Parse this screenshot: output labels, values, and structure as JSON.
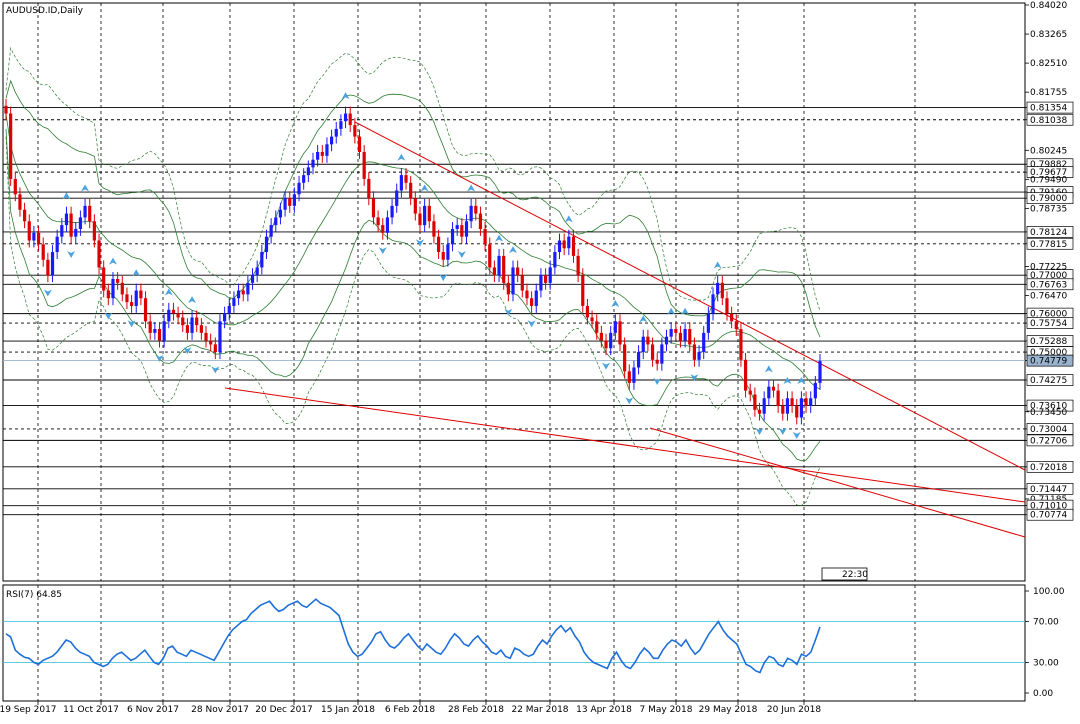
{
  "chart_data": {
    "type": "candlestick",
    "title": "AUDUSD.ID,Daily",
    "symbol": "AUDUSD.ID",
    "timeframe": "Daily",
    "ylim": [
      0.69,
      0.8402
    ],
    "y_ticks": [
      "0.84020",
      "0.83265",
      "0.82510",
      "0.81755",
      "0.81354",
      "0.81038",
      "0.80245",
      "0.79882",
      "0.79677",
      "0.79490",
      "0.79160",
      "0.79000",
      "0.78735",
      "0.78124",
      "0.77815",
      "0.77225",
      "0.77000",
      "0.76763",
      "0.76470",
      "0.76000",
      "0.75754",
      "0.75288",
      "0.75000",
      "0.74779",
      "0.74275",
      "0.73610",
      "0.73450",
      "0.73004",
      "0.72706",
      "0.72018",
      "0.71447",
      "0.71185",
      "0.71010",
      "0.70774"
    ],
    "x_ticks": [
      "19 Sep 2017",
      "11 Oct 2017",
      "6 Nov 2017",
      "28 Nov 2017",
      "20 Dec 2017",
      "15 Jan 2018",
      "6 Feb 2018",
      "28 Feb 2018",
      "22 Mar 2018",
      "13 Apr 2018",
      "7 May 2018",
      "29 May 2018",
      "20 Jun 2018"
    ],
    "current_price": "0.74779",
    "horizontal_levels": [
      "0.81354",
      "0.81038",
      "0.79882",
      "0.79677",
      "0.79160",
      "0.79000",
      "0.78124",
      "0.77815",
      "0.77000",
      "0.76763",
      "0.76000",
      "0.75754",
      "0.75288",
      "0.75000",
      "0.74275",
      "0.73610",
      "0.73004",
      "0.72706",
      "0.72018",
      "0.71447",
      "0.71010",
      "0.70774"
    ],
    "dashed_levels": [
      "0.81038",
      "0.79677",
      "0.77815",
      "0.75754",
      "0.75000",
      "0.73004"
    ],
    "candle_colors": {
      "up": "#1a1aff",
      "down": "#dd0000"
    },
    "close_series": [
      0.812,
      0.795,
      0.791,
      0.787,
      0.784,
      0.779,
      0.781,
      0.778,
      0.774,
      0.77,
      0.776,
      0.78,
      0.783,
      0.786,
      0.78,
      0.782,
      0.785,
      0.788,
      0.784,
      0.779,
      0.772,
      0.766,
      0.764,
      0.769,
      0.768,
      0.765,
      0.763,
      0.762,
      0.766,
      0.764,
      0.758,
      0.755,
      0.756,
      0.753,
      0.758,
      0.761,
      0.76,
      0.759,
      0.757,
      0.755,
      0.759,
      0.757,
      0.755,
      0.753,
      0.752,
      0.75,
      0.758,
      0.76,
      0.762,
      0.764,
      0.766,
      0.765,
      0.768,
      0.77,
      0.772,
      0.776,
      0.78,
      0.783,
      0.785,
      0.787,
      0.79,
      0.788,
      0.791,
      0.794,
      0.796,
      0.798,
      0.8,
      0.802,
      0.801,
      0.804,
      0.806,
      0.808,
      0.81,
      0.812,
      0.809,
      0.806,
      0.802,
      0.795,
      0.79,
      0.785,
      0.783,
      0.781,
      0.785,
      0.788,
      0.792,
      0.796,
      0.794,
      0.79,
      0.786,
      0.783,
      0.788,
      0.784,
      0.78,
      0.776,
      0.774,
      0.778,
      0.782,
      0.783,
      0.78,
      0.784,
      0.788,
      0.786,
      0.782,
      0.778,
      0.772,
      0.77,
      0.775,
      0.768,
      0.765,
      0.772,
      0.77,
      0.766,
      0.764,
      0.762,
      0.766,
      0.77,
      0.768,
      0.772,
      0.776,
      0.779,
      0.777,
      0.78,
      0.775,
      0.77,
      0.762,
      0.759,
      0.758,
      0.755,
      0.753,
      0.751,
      0.755,
      0.758,
      0.752,
      0.745,
      0.742,
      0.746,
      0.75,
      0.754,
      0.752,
      0.748,
      0.747,
      0.752,
      0.754,
      0.756,
      0.755,
      0.753,
      0.756,
      0.752,
      0.748,
      0.75,
      0.755,
      0.76,
      0.765,
      0.768,
      0.764,
      0.76,
      0.758,
      0.756,
      0.748,
      0.74,
      0.739,
      0.735,
      0.734,
      0.738,
      0.741,
      0.74,
      0.736,
      0.734,
      0.738,
      0.736,
      0.733,
      0.738,
      0.736,
      0.738,
      0.742,
      0.7477
    ],
    "overlays": [
      {
        "name": "Bollinger Bands (green)",
        "color": "#2e7d32"
      },
      {
        "name": "Bollinger Bands (dashed green)",
        "color": "#2e7d32"
      },
      {
        "name": "Trend lines (red)",
        "color": "#dd0000"
      },
      {
        "name": "Fractals (arrows)",
        "color": "#4aa3df"
      }
    ],
    "time_label": "22:30",
    "rsi": {
      "label": "RSI(7) 64.85",
      "ylim": [
        0,
        100
      ],
      "y_ticks": [
        "100.00",
        "70.00",
        "30.00",
        "0.00"
      ],
      "levels": [
        70,
        30
      ],
      "color": "#1e6fd9",
      "values": [
        58,
        55,
        42,
        38,
        35,
        34,
        30,
        28,
        32,
        34,
        36,
        40,
        46,
        52,
        50,
        44,
        40,
        38,
        36,
        30,
        28,
        26,
        28,
        34,
        38,
        40,
        36,
        32,
        34,
        38,
        42,
        36,
        30,
        28,
        34,
        44,
        46,
        40,
        38,
        36,
        42,
        40,
        38,
        36,
        34,
        32,
        40,
        48,
        56,
        62,
        66,
        70,
        72,
        78,
        82,
        86,
        88,
        90,
        84,
        80,
        82,
        86,
        88,
        90,
        86,
        84,
        88,
        92,
        88,
        86,
        84,
        80,
        76,
        62,
        48,
        40,
        36,
        38,
        44,
        50,
        58,
        60,
        52,
        46,
        44,
        48,
        54,
        58,
        52,
        46,
        42,
        48,
        44,
        40,
        38,
        44,
        52,
        58,
        54,
        48,
        46,
        52,
        56,
        50,
        46,
        40,
        38,
        42,
        36,
        34,
        44,
        42,
        38,
        36,
        38,
        46,
        52,
        48,
        56,
        62,
        66,
        60,
        64,
        56,
        50,
        40,
        34,
        30,
        28,
        26,
        24,
        34,
        40,
        32,
        26,
        24,
        30,
        38,
        44,
        40,
        34,
        34,
        42,
        48,
        52,
        50,
        46,
        52,
        44,
        38,
        42,
        50,
        58,
        64,
        70,
        62,
        56,
        52,
        48,
        38,
        28,
        26,
        22,
        20,
        30,
        36,
        34,
        28,
        26,
        34,
        32,
        28,
        38,
        36,
        40,
        52,
        64.85
      ]
    }
  }
}
